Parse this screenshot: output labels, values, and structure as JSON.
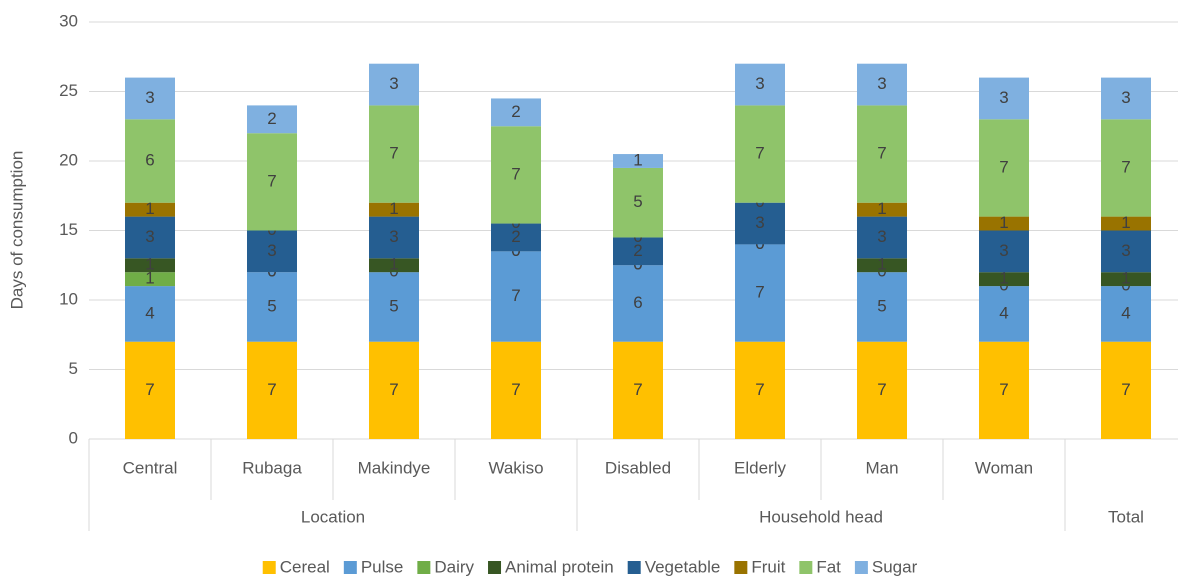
{
  "chart_data": {
    "type": "stacked_bar",
    "y_label": "Days of consumption",
    "groups": [
      {
        "name": "Location",
        "categories": [
          "Central",
          "Rubaga",
          "Makindye",
          "Wakiso"
        ]
      },
      {
        "name": "Household head",
        "categories": [
          "Disabled",
          "Elderly",
          "Man",
          "Woman"
        ]
      },
      {
        "name": "Total",
        "categories": [
          null
        ]
      }
    ],
    "series": [
      {
        "name": "Cereal",
        "color": "#ffc000",
        "values": [
          7,
          7,
          7,
          7,
          7,
          7,
          7,
          7,
          7
        ]
      },
      {
        "name": "Pulse",
        "color": "#5b9bd5",
        "values": [
          4,
          5,
          5,
          6.5,
          5.5,
          7,
          5,
          4,
          4
        ],
        "value_labels": [
          "4",
          "5",
          "5",
          "7",
          "6",
          "7",
          "5",
          "4",
          "4"
        ]
      },
      {
        "name": "Dairy",
        "color": "#70ad47",
        "values": [
          1,
          0,
          0,
          0,
          0,
          0,
          0,
          0,
          0
        ]
      },
      {
        "name": "Animal protein",
        "color": "#375623",
        "values": [
          1,
          0,
          1,
          0,
          0,
          0,
          1,
          1,
          1
        ]
      },
      {
        "name": "Vegetable",
        "color": "#255e91",
        "values": [
          3,
          3,
          3,
          2,
          2,
          3,
          3,
          3,
          3
        ]
      },
      {
        "name": "Fruit",
        "color": "#997300",
        "values": [
          1,
          0,
          1,
          0,
          0,
          0,
          1,
          1,
          1
        ]
      },
      {
        "name": "Fat",
        "color": "#8fc46a",
        "values": [
          6,
          7,
          7,
          7,
          5,
          7,
          7,
          7,
          7
        ]
      },
      {
        "name": "Sugar",
        "color": "#7fb0e0",
        "values": [
          3,
          2,
          3,
          2,
          1,
          3,
          3,
          3,
          3
        ]
      }
    ],
    "ylim": [
      0,
      30
    ],
    "yticks": [
      0,
      5,
      10,
      15,
      20,
      25,
      30
    ],
    "grid": true,
    "legend": "bottom"
  }
}
